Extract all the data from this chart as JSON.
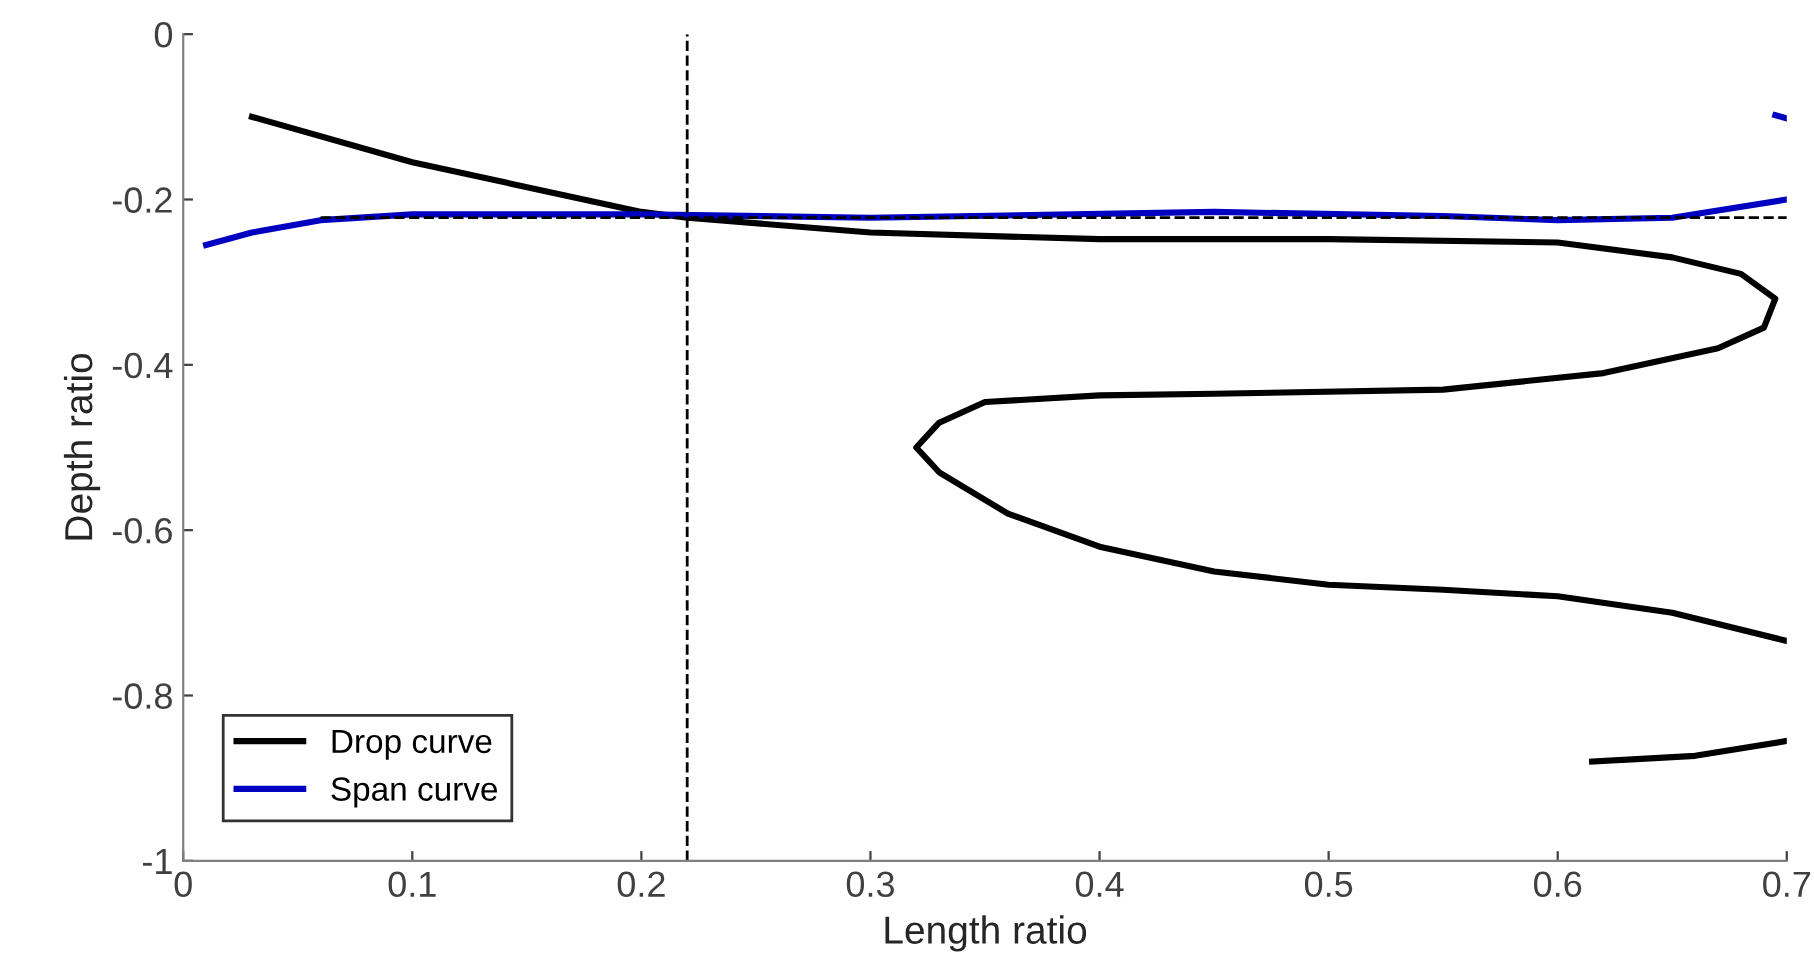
{
  "chart_data": {
    "type": "line",
    "xlabel": "Length ratio",
    "ylabel": "Depth ratio",
    "xlim": [
      0,
      0.7
    ],
    "ylim": [
      -1,
      0
    ],
    "xticks": [
      0,
      0.1,
      0.2,
      0.3,
      0.4,
      0.5,
      0.6,
      0.7
    ],
    "yticks": [
      {
        "value": -1,
        "label": "-1"
      },
      {
        "value": -0.8,
        "label": "-0.8"
      },
      {
        "value": -0.6,
        "label": "-0.6"
      },
      {
        "value": -0.4,
        "label": "-0.4"
      },
      {
        "value": -0.2,
        "label": "-0.2"
      },
      0
    ],
    "grid": false,
    "legend": "bottom left",
    "marker": "none",
    "ref_lines": [
      {
        "axis": "x",
        "value": 0.22,
        "color": "#000000",
        "line_style": "dashed"
      }
    ],
    "series": [
      {
        "name": "Drop curve",
        "color": "#000000",
        "line_style": "solid",
        "x": [
          0.03,
          0.1,
          0.2,
          0.22,
          0.3,
          0.4,
          0.5,
          0.6,
          0.65,
          0.68,
          0.695,
          0.69,
          0.67,
          0.62,
          0.55,
          0.45,
          0.4,
          0.35,
          0.33,
          0.32,
          0.33,
          0.36,
          0.4,
          0.45,
          0.5,
          0.55,
          0.6,
          0.65,
          0.7,
          null,
          0.615,
          0.66,
          0.7
        ],
        "values": [
          -0.1,
          -0.155,
          -0.215,
          -0.222,
          -0.24,
          -0.248,
          -0.248,
          -0.252,
          -0.27,
          -0.29,
          -0.32,
          -0.355,
          -0.38,
          -0.41,
          -0.43,
          -0.435,
          -0.437,
          -0.445,
          -0.47,
          -0.5,
          -0.53,
          -0.58,
          -0.62,
          -0.65,
          -0.666,
          -0.672,
          -0.68,
          -0.7,
          -0.734,
          null,
          -0.88,
          -0.873,
          -0.855
        ]
      },
      {
        "name": "Span curve",
        "color": "#0000c0",
        "line_style": "solid",
        "x": [
          0.01,
          0.03,
          0.06,
          0.1,
          0.2,
          0.3,
          0.45,
          0.55,
          0.6,
          0.65,
          0.7,
          null,
          0.695,
          0.7
        ],
        "values": [
          -0.255,
          -0.24,
          -0.225,
          -0.218,
          -0.218,
          -0.222,
          -0.215,
          -0.22,
          -0.225,
          -0.222,
          -0.2,
          null,
          -0.098,
          -0.102
        ]
      },
      {
        "color": "#000000",
        "line_style": "dashed",
        "x": [
          0.06,
          0.7
        ],
        "values": [
          -0.222,
          -0.222
        ]
      }
    ]
  }
}
